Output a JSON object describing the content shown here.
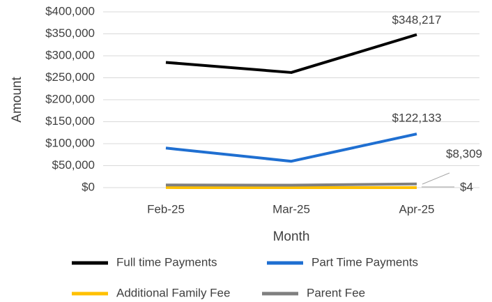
{
  "chart_data": {
    "type": "line",
    "x_label": "Month",
    "y_label": "Amount",
    "categories": [
      "Feb-25",
      "Mar-25",
      "Apr-25"
    ],
    "series": [
      {
        "name": "Full time Payments",
        "color": "#000000",
        "values": [
          285000,
          262000,
          348217
        ],
        "value_labels": [
          null,
          null,
          "$348,217"
        ]
      },
      {
        "name": "Part Time Payments",
        "color": "#1f6fd1",
        "values": [
          90000,
          60000,
          122133
        ],
        "value_labels": [
          null,
          null,
          "$122,133"
        ]
      },
      {
        "name": "Additional Family Fee",
        "color": "#ffc000",
        "values": [
          100,
          50,
          4
        ],
        "value_labels": [
          null,
          null,
          "$4"
        ]
      },
      {
        "name": "Parent Fee",
        "color": "#7f7f7f",
        "values": [
          6000,
          5500,
          8309
        ],
        "value_labels": [
          null,
          null,
          "$8,309"
        ]
      }
    ],
    "ylim": [
      0,
      400000
    ],
    "yticks": [
      {
        "value": 0,
        "label": "$0"
      },
      {
        "value": 50000,
        "label": "$50,000"
      },
      {
        "value": 100000,
        "label": "$100,000"
      },
      {
        "value": 150000,
        "label": "$150,000"
      },
      {
        "value": 200000,
        "label": "$200,000"
      },
      {
        "value": 250000,
        "label": "$250,000"
      },
      {
        "value": 300000,
        "label": "$300,000"
      },
      {
        "value": 350000,
        "label": "$350,000"
      },
      {
        "value": 400000,
        "label": "$400,000"
      }
    ],
    "grid": true
  }
}
